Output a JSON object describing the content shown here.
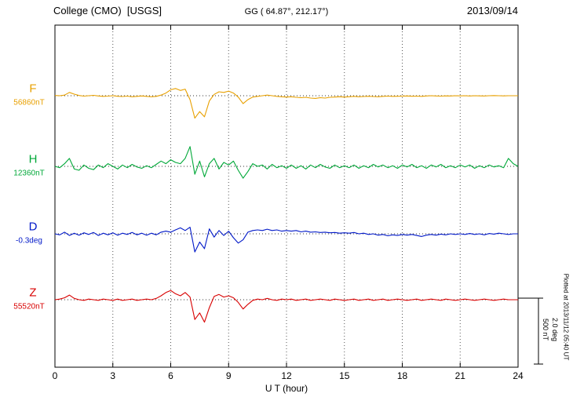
{
  "header": {
    "station": "College (CMO)  [USGS]",
    "coords": "GG ( 64.87°, 212.17°)",
    "date": "2013/09/14"
  },
  "axis": {
    "xlabel": "U T (hour)",
    "xmin": 0,
    "xmax": 24,
    "ticks": [
      0,
      3,
      6,
      9,
      12,
      15,
      18,
      21,
      24
    ],
    "grid": "dotted-vertical-every-3h"
  },
  "scalebar": {
    "nt_label": "500 nT",
    "deg_label": "2.0 deg",
    "nt": 500,
    "deg": 2.0
  },
  "footer_note": "Plotted at 2013/11/12 05:40 UT",
  "colors": {
    "F": "#e8a000",
    "H": "#00a838",
    "D": "#0018c8",
    "Z": "#d80000",
    "frame": "#000000",
    "grid": "#555555"
  },
  "chart_data": {
    "type": "line",
    "title": "College (CMO) [USGS] magnetogram 2013/09/14",
    "xlabel": "U T (hour)",
    "xlim": [
      0,
      24
    ],
    "x_step_hours": 0.25,
    "legend_position": "left-of-each-trace",
    "grid": "dotted vertical at 3h intervals, dotted baseline per trace",
    "series": [
      {
        "name": "F",
        "label": "F",
        "baseline_label": "56860nT",
        "unit": "nT",
        "color": "#e8a000",
        "values": [
          2,
          0,
          5,
          25,
          12,
          2,
          -3,
          0,
          3,
          -2,
          -5,
          -3,
          0,
          -4,
          -6,
          -3,
          -8,
          -5,
          -2,
          -5,
          -8,
          -5,
          5,
          20,
          45,
          55,
          40,
          50,
          -30,
          -170,
          -120,
          -160,
          -40,
          10,
          30,
          25,
          35,
          20,
          -10,
          -60,
          -30,
          -10,
          -5,
          0,
          5,
          0,
          -5,
          -8,
          -10,
          -8,
          -12,
          -15,
          -12,
          -18,
          -20,
          -15,
          -18,
          -12,
          -10,
          -8,
          -10,
          -8,
          -5,
          -8,
          -6,
          -4,
          -6,
          -8,
          -5,
          -3,
          -5,
          -4,
          -3,
          -2,
          -4,
          -3,
          -5,
          -2,
          0,
          -2,
          -3,
          -1,
          -2,
          0,
          -1,
          0,
          -2,
          0,
          -1,
          -2,
          0,
          1,
          0,
          -1,
          0,
          0,
          0
        ]
      },
      {
        "name": "H",
        "label": "H",
        "baseline_label": "12360nT",
        "unit": "nT",
        "color": "#00a838",
        "values": [
          0,
          -10,
          20,
          60,
          -20,
          -30,
          10,
          -15,
          -25,
          10,
          -10,
          20,
          0,
          -20,
          10,
          -10,
          15,
          -5,
          -15,
          5,
          -10,
          15,
          40,
          20,
          50,
          30,
          20,
          60,
          150,
          -60,
          40,
          -80,
          20,
          60,
          -20,
          30,
          10,
          40,
          -30,
          -90,
          -40,
          20,
          0,
          10,
          -20,
          15,
          -10,
          5,
          -15,
          10,
          -15,
          5,
          -20,
          10,
          -10,
          15,
          -5,
          -15,
          10,
          -10,
          5,
          -10,
          10,
          -15,
          5,
          -10,
          15,
          -5,
          10,
          -10,
          5,
          -15,
          10,
          -5,
          15,
          -10,
          5,
          -15,
          10,
          -5,
          15,
          -10,
          5,
          -10,
          10,
          -5,
          10,
          -15,
          5,
          -10,
          10,
          -5,
          5,
          -10,
          60,
          20,
          0
        ]
      },
      {
        "name": "D",
        "label": "D",
        "baseline_label": "-0.3deg",
        "unit": "deg",
        "color": "#0018c8",
        "values": [
          0,
          -0.03,
          0.05,
          -0.05,
          0.02,
          -0.04,
          0.03,
          -0.02,
          0.04,
          -0.05,
          0.02,
          -0.03,
          0.03,
          -0.04,
          0.02,
          -0.02,
          0.04,
          -0.03,
          0.02,
          -0.04,
          0.02,
          -0.03,
          0.05,
          0.08,
          0.05,
          0.12,
          0.18,
          0.1,
          0.2,
          -0.55,
          -0.25,
          -0.45,
          0.15,
          -0.1,
          0.1,
          -0.05,
          0.08,
          -0.12,
          -0.28,
          -0.18,
          0.05,
          0.1,
          0.12,
          0.1,
          0.14,
          0.1,
          0.12,
          0.08,
          0.1,
          0.08,
          0.1,
          0.06,
          0.08,
          0.05,
          0.06,
          0.04,
          0.05,
          0.03,
          0.04,
          0.02,
          0.03,
          0.02,
          0.04,
          0,
          0.02,
          -0.02,
          0,
          -0.04,
          -0.02,
          -0.06,
          -0.03,
          -0.05,
          -0.02,
          -0.04,
          -0.02,
          -0.05,
          -0.08,
          -0.04,
          -0.02,
          -0.04,
          -0.01,
          -0.03,
          0,
          -0.02,
          0,
          -0.02,
          0.01,
          -0.02,
          0,
          -0.03,
          0.01,
          -0.01,
          0.02,
          0,
          -0.02,
          0,
          0
        ]
      },
      {
        "name": "Z",
        "label": "Z",
        "baseline_label": "55520nT",
        "unit": "nT",
        "color": "#d80000",
        "values": [
          0,
          5,
          15,
          35,
          10,
          0,
          -5,
          5,
          0,
          -5,
          5,
          0,
          -5,
          5,
          -5,
          0,
          5,
          -5,
          0,
          5,
          0,
          10,
          30,
          55,
          70,
          45,
          30,
          55,
          20,
          -150,
          -100,
          -170,
          -60,
          25,
          40,
          20,
          30,
          15,
          -20,
          -70,
          -35,
          -5,
          5,
          0,
          10,
          0,
          -5,
          5,
          0,
          5,
          -5,
          0,
          5,
          -5,
          0,
          5,
          0,
          -5,
          5,
          0,
          -5,
          0,
          5,
          -5,
          0,
          5,
          -5,
          0,
          5,
          -5,
          0,
          5,
          0,
          -5,
          0,
          5,
          -5,
          0,
          5,
          0,
          -5,
          5,
          0,
          -5,
          0,
          5,
          0,
          -5,
          0,
          5,
          0,
          -5,
          0,
          5,
          0,
          0,
          0
        ]
      }
    ]
  }
}
